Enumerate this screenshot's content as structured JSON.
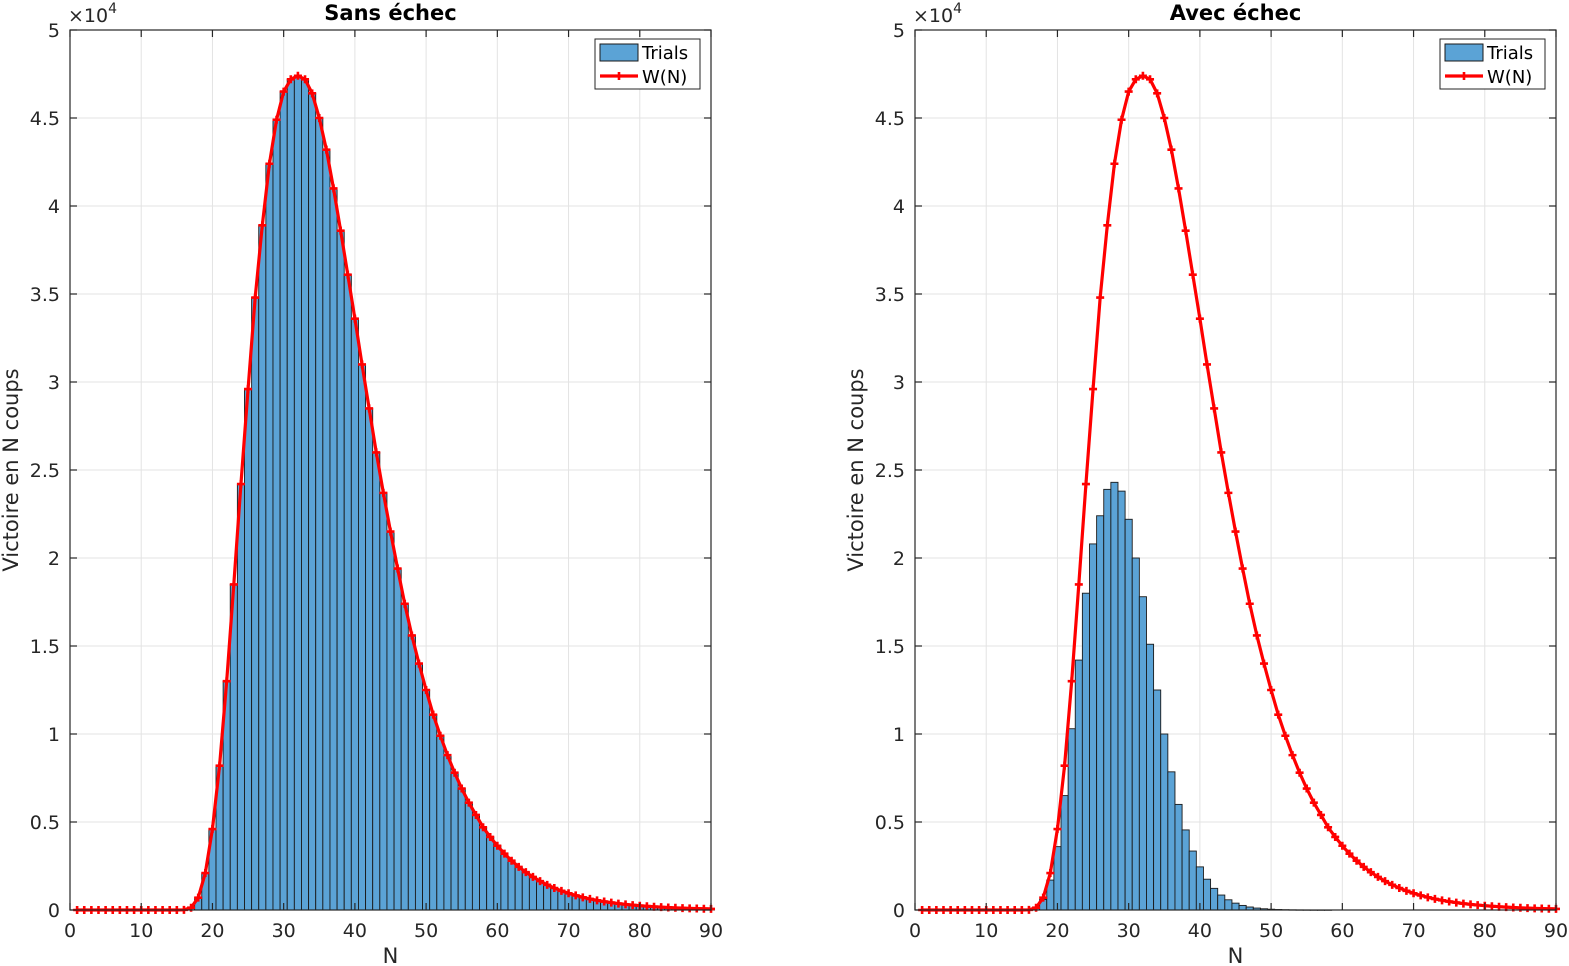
{
  "chart_data": [
    {
      "type": "bar",
      "title": "Sans échec",
      "xlabel": "N",
      "ylabel": "Victoire en N coups",
      "y_exponent_label": "×10",
      "y_exponent": "4",
      "xlim": [
        0,
        90
      ],
      "ylim": [
        0,
        50000
      ],
      "xticks": [
        "0",
        "10",
        "20",
        "30",
        "40",
        "50",
        "60",
        "70",
        "80",
        "90"
      ],
      "yticks": [
        "0",
        "0.5",
        "1",
        "1.5",
        "2",
        "2.5",
        "3",
        "3.5",
        "4",
        "4.5",
        "5"
      ],
      "grid": true,
      "legend_position": "top-right",
      "legend": [
        "Trials",
        "W(N)"
      ],
      "series": [
        {
          "name": "Trials",
          "type": "bar",
          "x": [
            1,
            2,
            3,
            4,
            5,
            6,
            7,
            8,
            9,
            10,
            11,
            12,
            13,
            14,
            15,
            16,
            17,
            18,
            19,
            20,
            21,
            22,
            23,
            24,
            25,
            26,
            27,
            28,
            29,
            30,
            31,
            32,
            33,
            34,
            35,
            36,
            37,
            38,
            39,
            40,
            41,
            42,
            43,
            44,
            45,
            46,
            47,
            48,
            49,
            50,
            51,
            52,
            53,
            54,
            55,
            56,
            57,
            58,
            59,
            60,
            61,
            62,
            63,
            64,
            65,
            66,
            67,
            68,
            69,
            70,
            71,
            72,
            73,
            74,
            75,
            76,
            77,
            78,
            79,
            80,
            81,
            82,
            83,
            84,
            85,
            86,
            87,
            88,
            89,
            90
          ],
          "values": [
            0,
            0,
            0,
            0,
            0,
            0,
            0,
            0,
            0,
            0,
            0,
            0,
            0,
            0,
            0,
            10,
            130,
            700,
            2100,
            4600,
            8200,
            13000,
            18500,
            24200,
            29600,
            34800,
            38900,
            42400,
            44900,
            46500,
            47200,
            47400,
            47200,
            46400,
            45000,
            43200,
            41000,
            38600,
            36100,
            33600,
            31000,
            28500,
            26000,
            23700,
            21500,
            19400,
            17400,
            15600,
            14000,
            12500,
            11100,
            9900,
            8800,
            7800,
            6900,
            6100,
            5400,
            4700,
            4150,
            3650,
            3200,
            2800,
            2450,
            2150,
            1880,
            1640,
            1430,
            1250,
            1090,
            950,
            830,
            720,
            630,
            550,
            480,
            420,
            365,
            320,
            280,
            245,
            215,
            188,
            164,
            143,
            125,
            109,
            95,
            83,
            72,
            63
          ]
        },
        {
          "name": "W(N)",
          "type": "line",
          "x": [
            1,
            2,
            3,
            4,
            5,
            6,
            7,
            8,
            9,
            10,
            11,
            12,
            13,
            14,
            15,
            16,
            17,
            18,
            19,
            20,
            21,
            22,
            23,
            24,
            25,
            26,
            27,
            28,
            29,
            30,
            31,
            32,
            33,
            34,
            35,
            36,
            37,
            38,
            39,
            40,
            41,
            42,
            43,
            44,
            45,
            46,
            47,
            48,
            49,
            50,
            51,
            52,
            53,
            54,
            55,
            56,
            57,
            58,
            59,
            60,
            61,
            62,
            63,
            64,
            65,
            66,
            67,
            68,
            69,
            70,
            71,
            72,
            73,
            74,
            75,
            76,
            77,
            78,
            79,
            80,
            81,
            82,
            83,
            84,
            85,
            86,
            87,
            88,
            89,
            90
          ],
          "values": [
            0,
            0,
            0,
            0,
            0,
            0,
            0,
            0,
            0,
            0,
            0,
            0,
            0,
            0,
            0,
            10,
            130,
            700,
            2100,
            4600,
            8200,
            13000,
            18500,
            24200,
            29600,
            34800,
            38900,
            42400,
            44900,
            46500,
            47200,
            47400,
            47200,
            46400,
            45000,
            43200,
            41000,
            38600,
            36100,
            33600,
            31000,
            28500,
            26000,
            23700,
            21500,
            19400,
            17400,
            15600,
            14000,
            12500,
            11100,
            9900,
            8800,
            7800,
            6900,
            6100,
            5400,
            4700,
            4150,
            3650,
            3200,
            2800,
            2450,
            2150,
            1880,
            1640,
            1430,
            1250,
            1090,
            950,
            830,
            720,
            630,
            550,
            480,
            420,
            365,
            320,
            280,
            245,
            215,
            188,
            164,
            143,
            125,
            109,
            95,
            83,
            72,
            63
          ],
          "color": "#ff0000"
        }
      ]
    },
    {
      "type": "bar",
      "title": "Avec échec",
      "xlabel": "N",
      "ylabel": "Victoire en N coups",
      "y_exponent_label": "×10",
      "y_exponent": "4",
      "xlim": [
        0,
        90
      ],
      "ylim": [
        0,
        50000
      ],
      "xticks": [
        "0",
        "10",
        "20",
        "30",
        "40",
        "50",
        "60",
        "70",
        "80",
        "90"
      ],
      "yticks": [
        "0",
        "0.5",
        "1",
        "1.5",
        "2",
        "2.5",
        "3",
        "3.5",
        "4",
        "4.5",
        "5"
      ],
      "grid": true,
      "legend_position": "top-right",
      "legend": [
        "Trials",
        "W(N)"
      ],
      "series": [
        {
          "name": "Trials",
          "type": "bar",
          "x": [
            1,
            2,
            3,
            4,
            5,
            6,
            7,
            8,
            9,
            10,
            11,
            12,
            13,
            14,
            15,
            16,
            17,
            18,
            19,
            20,
            21,
            22,
            23,
            24,
            25,
            26,
            27,
            28,
            29,
            30,
            31,
            32,
            33,
            34,
            35,
            36,
            37,
            38,
            39,
            40,
            41,
            42,
            43,
            44,
            45,
            46,
            47,
            48,
            49,
            50,
            51,
            52,
            53,
            54,
            55,
            56,
            57,
            58,
            59,
            60,
            61,
            62,
            63,
            64,
            65,
            66,
            67,
            68,
            69,
            70,
            71,
            72,
            73,
            74,
            75,
            76,
            77,
            78,
            79,
            80,
            81,
            82,
            83,
            84,
            85,
            86,
            87,
            88,
            89,
            90
          ],
          "values": [
            0,
            0,
            0,
            0,
            0,
            0,
            0,
            0,
            0,
            0,
            0,
            0,
            0,
            0,
            0,
            10,
            100,
            600,
            1700,
            3600,
            6500,
            10300,
            14200,
            18000,
            20800,
            22400,
            23900,
            24300,
            23800,
            22200,
            20000,
            17800,
            15100,
            12500,
            10000,
            7850,
            6000,
            4550,
            3350,
            2450,
            1750,
            1230,
            850,
            580,
            390,
            260,
            170,
            110,
            70,
            45,
            28,
            17,
            10,
            6,
            4,
            2,
            1,
            1,
            0,
            0,
            0,
            0,
            0,
            0,
            0,
            0,
            0,
            0,
            0,
            0,
            0,
            0,
            0,
            0,
            0,
            0,
            0,
            0,
            0,
            0,
            0,
            0,
            0,
            0,
            0,
            0,
            0,
            0,
            0,
            0
          ]
        },
        {
          "name": "W(N)",
          "type": "line",
          "x": [
            1,
            2,
            3,
            4,
            5,
            6,
            7,
            8,
            9,
            10,
            11,
            12,
            13,
            14,
            15,
            16,
            17,
            18,
            19,
            20,
            21,
            22,
            23,
            24,
            25,
            26,
            27,
            28,
            29,
            30,
            31,
            32,
            33,
            34,
            35,
            36,
            37,
            38,
            39,
            40,
            41,
            42,
            43,
            44,
            45,
            46,
            47,
            48,
            49,
            50,
            51,
            52,
            53,
            54,
            55,
            56,
            57,
            58,
            59,
            60,
            61,
            62,
            63,
            64,
            65,
            66,
            67,
            68,
            69,
            70,
            71,
            72,
            73,
            74,
            75,
            76,
            77,
            78,
            79,
            80,
            81,
            82,
            83,
            84,
            85,
            86,
            87,
            88,
            89,
            90
          ],
          "values": [
            0,
            0,
            0,
            0,
            0,
            0,
            0,
            0,
            0,
            0,
            0,
            0,
            0,
            0,
            0,
            10,
            130,
            700,
            2100,
            4600,
            8200,
            13000,
            18500,
            24200,
            29600,
            34800,
            38900,
            42400,
            44900,
            46500,
            47200,
            47400,
            47200,
            46400,
            45000,
            43200,
            41000,
            38600,
            36100,
            33600,
            31000,
            28500,
            26000,
            23700,
            21500,
            19400,
            17400,
            15600,
            14000,
            12500,
            11100,
            9900,
            8800,
            7800,
            6900,
            6100,
            5400,
            4700,
            4150,
            3650,
            3200,
            2800,
            2450,
            2150,
            1880,
            1640,
            1430,
            1250,
            1090,
            950,
            830,
            720,
            630,
            550,
            480,
            420,
            365,
            320,
            280,
            245,
            215,
            188,
            164,
            143,
            125,
            109,
            95,
            83,
            72,
            63
          ],
          "color": "#ff0000"
        }
      ]
    }
  ],
  "colors": {
    "bar_fill": "#5ba3d6",
    "bar_edge": "#1a1a1a",
    "line": "#ff0000",
    "grid": "#e3e3e3",
    "axis": "#262626"
  }
}
